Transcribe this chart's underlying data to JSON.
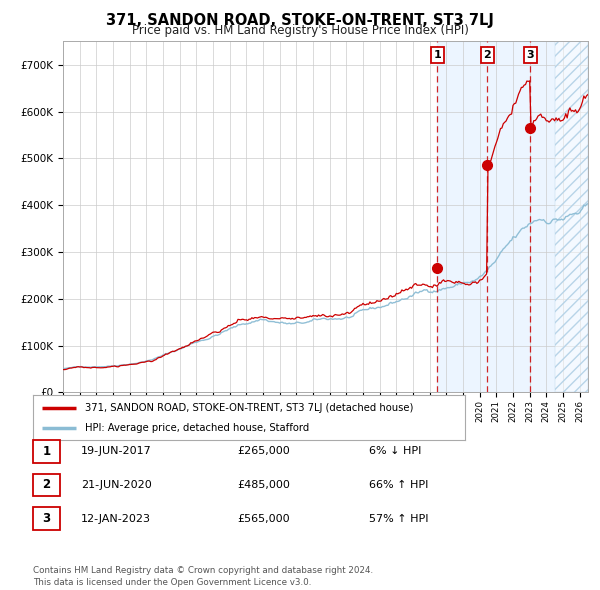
{
  "title": "371, SANDON ROAD, STOKE-ON-TRENT, ST3 7LJ",
  "subtitle": "Price paid vs. HM Land Registry's House Price Index (HPI)",
  "ylim": [
    0,
    750000
  ],
  "yticks": [
    0,
    100000,
    200000,
    300000,
    400000,
    500000,
    600000,
    700000
  ],
  "ytick_labels": [
    "£0",
    "£100K",
    "£200K",
    "£300K",
    "£400K",
    "£500K",
    "£600K",
    "£700K"
  ],
  "hpi_color": "#8bbcd4",
  "price_color": "#cc0000",
  "shade_color": "#ddeeff",
  "shade_alpha": 0.55,
  "hatch_color": "#aaccee",
  "transactions": [
    {
      "date": 2017.47,
      "price": 265000,
      "label": "1"
    },
    {
      "date": 2020.47,
      "price": 485000,
      "label": "2"
    },
    {
      "date": 2023.04,
      "price": 565000,
      "label": "3"
    }
  ],
  "xmin": 1995.0,
  "xmax": 2026.5,
  "hatch_start": 2024.5,
  "legend_property_label": "371, SANDON ROAD, STOKE-ON-TRENT, ST3 7LJ (detached house)",
  "legend_hpi_label": "HPI: Average price, detached house, Stafford",
  "table_rows": [
    [
      "1",
      "19-JUN-2017",
      "£265,000",
      "6% ↓ HPI"
    ],
    [
      "2",
      "21-JUN-2020",
      "£485,000",
      "66% ↑ HPI"
    ],
    [
      "3",
      "12-JAN-2023",
      "£565,000",
      "57% ↑ HPI"
    ]
  ],
  "footer": "Contains HM Land Registry data © Crown copyright and database right 2024.\nThis data is licensed under the Open Government Licence v3.0.",
  "background_color": "#ffffff",
  "grid_color": "#cccccc"
}
